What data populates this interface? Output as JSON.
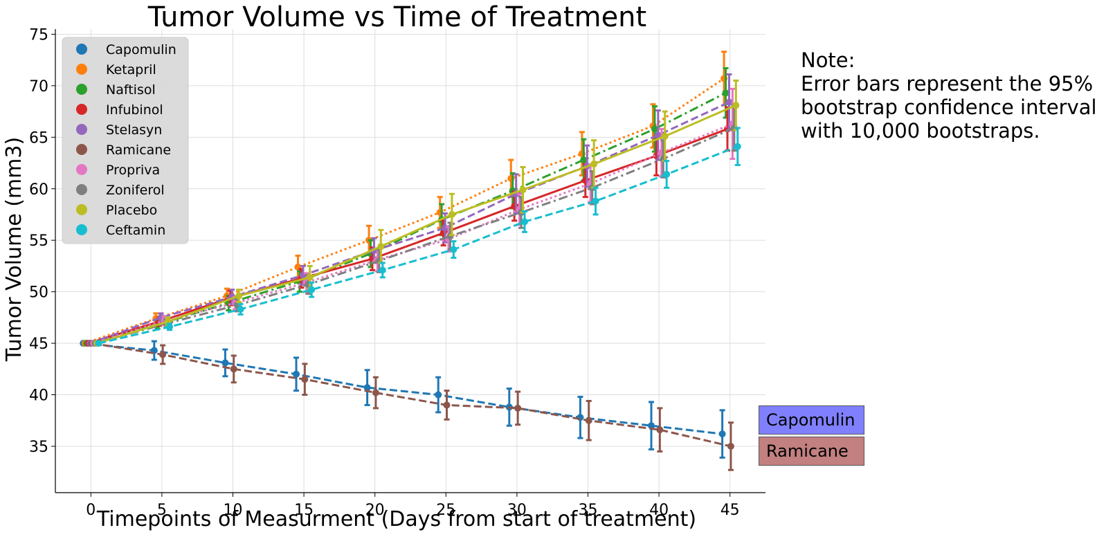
{
  "chart_data": {
    "type": "line",
    "title": "Tumor Volume vs Time of Treatment",
    "xlabel": "Timepoints of Measurment (Days from start of treatment)",
    "ylabel": "Tumor Volume (mm3)",
    "xlim": [
      -2.5,
      47.5
    ],
    "ylim": [
      30.5,
      75.5
    ],
    "xticks": [
      0,
      5,
      10,
      15,
      20,
      25,
      30,
      35,
      40,
      45
    ],
    "yticks": [
      35,
      40,
      45,
      50,
      55,
      60,
      65,
      70,
      75
    ],
    "grid": true,
    "legend_position": "top-left",
    "x": [
      0,
      5,
      10,
      15,
      20,
      25,
      30,
      35,
      40,
      45
    ],
    "series": [
      {
        "name": "Capomulin",
        "color": "#1f77b4",
        "dash": "dashed",
        "values": [
          45.0,
          44.3,
          43.1,
          42.0,
          40.7,
          40.0,
          38.8,
          37.8,
          37.0,
          36.2
        ],
        "err": [
          0.0,
          0.9,
          1.3,
          1.6,
          1.7,
          1.7,
          1.8,
          2.0,
          2.3,
          2.3
        ]
      },
      {
        "name": "Ketapril",
        "color": "#ff7f0e",
        "dash": "dotted",
        "values": [
          45.0,
          47.4,
          49.6,
          52.4,
          55.0,
          57.7,
          61.0,
          63.4,
          66.1,
          70.7
        ],
        "err": [
          0.0,
          0.5,
          0.7,
          1.1,
          1.4,
          1.5,
          1.8,
          2.1,
          2.1,
          2.6
        ]
      },
      {
        "name": "Naftisol",
        "color": "#2ca02c",
        "dash": "dashdot",
        "values": [
          45.0,
          46.8,
          48.9,
          51.0,
          53.7,
          57.0,
          59.8,
          62.8,
          65.8,
          69.3
        ],
        "err": [
          0.0,
          0.4,
          0.7,
          1.0,
          1.3,
          1.5,
          1.7,
          2.0,
          2.2,
          2.4
        ]
      },
      {
        "name": "Infubinol",
        "color": "#d62728",
        "dash": "solid",
        "values": [
          45.0,
          47.1,
          49.4,
          51.3,
          53.2,
          55.7,
          58.3,
          60.8,
          63.2,
          65.8
        ],
        "err": [
          0.0,
          0.4,
          0.7,
          0.9,
          1.1,
          1.2,
          1.4,
          1.6,
          1.9,
          2.1
        ]
      },
      {
        "name": "Stelasyn",
        "color": "#9467bd",
        "dash": "dashed",
        "values": [
          45.0,
          47.5,
          49.5,
          51.6,
          54.0,
          56.2,
          59.5,
          62.2,
          65.2,
          68.4
        ],
        "err": [
          0.0,
          0.4,
          0.7,
          0.9,
          1.2,
          1.4,
          1.9,
          2.0,
          2.4,
          2.7
        ]
      },
      {
        "name": "Ramicane",
        "color": "#8c564b",
        "dash": "dashed",
        "values": [
          45.0,
          43.9,
          42.5,
          41.5,
          40.2,
          39.0,
          38.7,
          37.5,
          36.6,
          35.0
        ],
        "err": [
          0.0,
          0.9,
          1.3,
          1.5,
          1.5,
          1.4,
          1.6,
          1.9,
          2.1,
          2.3
        ]
      },
      {
        "name": "Propriva",
        "color": "#e377c2",
        "dash": "dotted",
        "values": [
          45.0,
          47.2,
          48.9,
          50.9,
          53.1,
          55.1,
          58.0,
          60.5,
          63.5,
          66.3
        ],
        "err": [
          0.0,
          0.4,
          0.6,
          0.9,
          1.1,
          1.2,
          1.5,
          1.8,
          2.3,
          3.4
        ]
      },
      {
        "name": "Zoniferol",
        "color": "#7f7f7f",
        "dash": "dashdot",
        "values": [
          45.0,
          46.9,
          48.7,
          50.7,
          53.0,
          55.4,
          57.7,
          60.1,
          62.9,
          65.9
        ],
        "err": [
          0.0,
          0.4,
          0.6,
          0.9,
          1.1,
          1.3,
          1.5,
          1.6,
          1.8,
          2.2
        ]
      },
      {
        "name": "Placebo",
        "color": "#bcbd22",
        "dash": "solid",
        "values": [
          45.0,
          47.1,
          49.6,
          51.4,
          54.4,
          57.5,
          59.9,
          62.4,
          65.1,
          68.1
        ],
        "err": [
          0.0,
          0.4,
          0.6,
          1.1,
          1.6,
          2.0,
          2.2,
          2.3,
          2.4,
          2.4
        ]
      },
      {
        "name": "Ceftamin",
        "color": "#17becf",
        "dash": "dashed",
        "values": [
          45.0,
          46.6,
          48.3,
          50.2,
          52.1,
          54.1,
          56.8,
          58.8,
          61.4,
          64.1
        ],
        "err": [
          0.0,
          0.3,
          0.5,
          0.7,
          0.7,
          0.8,
          1.0,
          1.3,
          1.3,
          1.8
        ]
      }
    ]
  },
  "note": "Note:\nError bars represent the 95%\nbootstrap confidence interval\nwith 10,000 bootstraps.",
  "tags": {
    "capomulin": "Capomulin",
    "ramicane": "Ramicane"
  }
}
